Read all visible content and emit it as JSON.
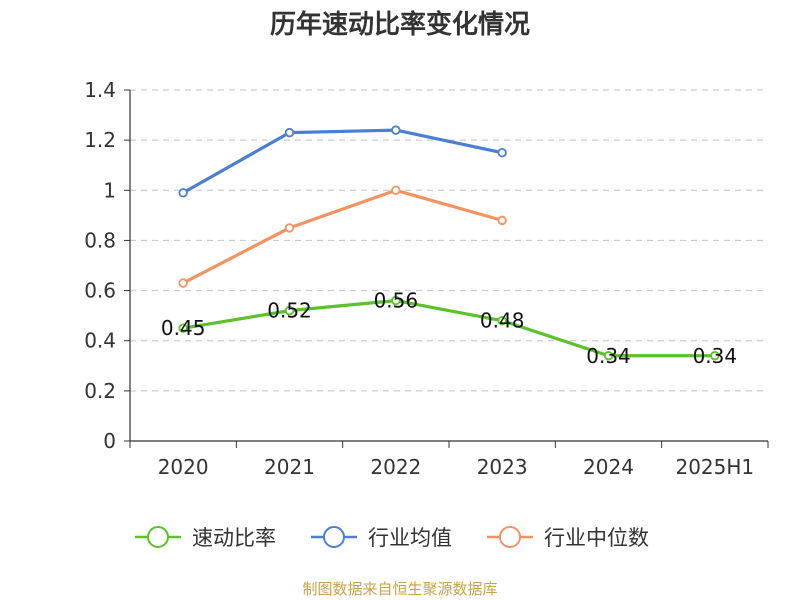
{
  "chart_data": {
    "type": "line",
    "title": "历年速动比率变化情况",
    "categories": [
      "2020",
      "2021",
      "2022",
      "2023",
      "2024",
      "2025H1"
    ],
    "ylim": [
      0,
      1.4
    ],
    "yticks": [
      "0",
      "0.2",
      "0.4",
      "0.6",
      "0.8",
      "1",
      "1.2",
      "1.4"
    ],
    "grid": true,
    "legend_position": "bottom",
    "series": [
      {
        "name": "速动比率",
        "color": "#5cc12b",
        "values": [
          0.45,
          0.52,
          0.56,
          0.48,
          0.34,
          0.34
        ],
        "labels": [
          "0.45",
          "0.52",
          "0.56",
          "0.48",
          "0.34",
          "0.34"
        ]
      },
      {
        "name": "行业均值",
        "color": "#4a7fd6",
        "values": [
          0.99,
          1.23,
          1.24,
          1.15,
          null,
          null
        ]
      },
      {
        "name": "行业中位数",
        "color": "#f59360",
        "values": [
          0.63,
          0.85,
          1.0,
          0.88,
          null,
          null
        ]
      }
    ]
  },
  "source": "制图数据来自恒生聚源数据库"
}
